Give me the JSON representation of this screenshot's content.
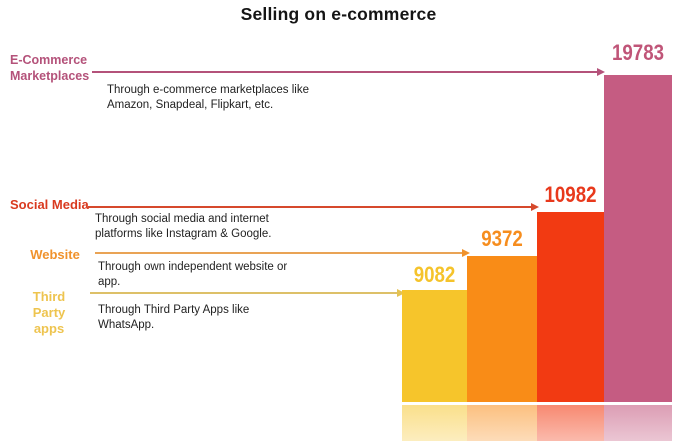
{
  "title": "Selling on e-commerce",
  "chart_data": {
    "type": "bar",
    "title": "Selling on e-commerce",
    "categories": [
      "Third Party apps",
      "Website",
      "Social Media",
      "E-Commerce Marketplaces"
    ],
    "values": [
      9082,
      9372,
      10982,
      19783
    ],
    "value_labels": [
      "9082",
      "9372",
      "10982",
      "19783"
    ],
    "bar_colors": [
      "#f6c52b",
      "#f98c17",
      "#f23a12",
      "#c55c82"
    ],
    "annotations": [
      "Through Third Party Apps like WhatsApp.",
      "Through own independent website or app.",
      "Through social media and internet platforms like Instagram & Google.",
      "Through e-commerce marketplaces like Amazon, Snapdeal, Flipkart, etc."
    ],
    "legend": "none",
    "axes_hidden": true,
    "style_note": "pictorial infographic; each category labeled at left with an arrow pointing to its bar; bars have faded reflection below baseline"
  },
  "channels": [
    {
      "label": "E-Commerce\nMarketplaces",
      "value": "19783",
      "description": "Through e-commerce marketplaces like\nAmazon, Snapdeal, Flipkart, etc.",
      "label_color": "#b4527a",
      "bar_color": "#c55c82"
    },
    {
      "label": "Social Media",
      "value": "10982",
      "description": "Through social media and internet\nplatforms like Instagram & Google.",
      "label_color": "#d93a1f",
      "bar_color": "#f23a12"
    },
    {
      "label": "Website",
      "value": "9372",
      "description": "Through own independent website or\napp.",
      "label_color": "#f0922c",
      "bar_color": "#f98c17"
    },
    {
      "label": "Third Party\napps",
      "value": "9082",
      "description": "Through Third Party Apps like\nWhatsApp.",
      "label_color": "#eec44f",
      "bar_color": "#f6c52b"
    }
  ]
}
